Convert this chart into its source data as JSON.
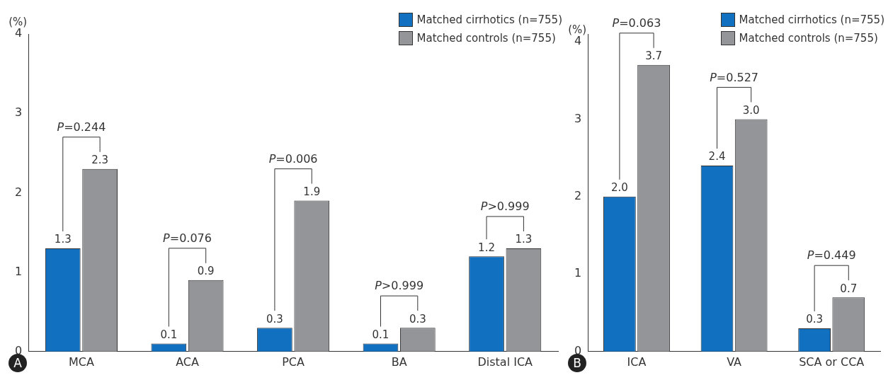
{
  "chart_data": [
    {
      "type": "bar",
      "ylabel": "(%)",
      "categories": [
        "MCA",
        "ACA",
        "PCA",
        "BA",
        "Distal ICA"
      ],
      "series": [
        {
          "name": "Matched cirrhotics (n=755)",
          "color": "#1170c0",
          "values": [
            1.3,
            0.1,
            0.3,
            0.1,
            1.2
          ],
          "value_labels": [
            "1.3",
            "0.1",
            "0.3",
            "0.1",
            "1.2"
          ]
        },
        {
          "name": "Matched controls (n=755)",
          "color": "#939598",
          "values": [
            2.3,
            0.9,
            1.9,
            0.3,
            1.3
          ],
          "value_labels": [
            "2.3",
            "0.9",
            "1.9",
            "0.3",
            "1.3"
          ]
        }
      ],
      "ylim": [
        0,
        4
      ],
      "yticks": [
        0,
        1,
        2,
        3,
        4
      ],
      "grid": false,
      "legend": "top right",
      "annotations": [
        "A",
        "P=0.244",
        "P=0.076",
        "P=0.006",
        "P>0.999",
        "P>0.999"
      ]
    },
    {
      "type": "bar",
      "ylabel": "(%)",
      "categories": [
        "ICA",
        "VA",
        "SCA or CCA"
      ],
      "series": [
        {
          "name": "Matched cirrhotics (n=755)",
          "color": "#1170c0",
          "values": [
            2.0,
            2.4,
            0.3
          ],
          "value_labels": [
            "2.0",
            "2.4",
            "0.3"
          ]
        },
        {
          "name": "Matched controls (n=755)",
          "color": "#939598",
          "values": [
            3.7,
            3.0,
            0.7
          ],
          "value_labels": [
            "3.7",
            "3.0",
            "0.7"
          ]
        }
      ],
      "ylim": [
        0,
        4.1
      ],
      "yticks": [
        0,
        1,
        2,
        3,
        4
      ],
      "grid": false,
      "legend": "top right",
      "annotations": [
        "B",
        "P=0.063",
        "P=0.527",
        "P=0.449"
      ]
    }
  ]
}
